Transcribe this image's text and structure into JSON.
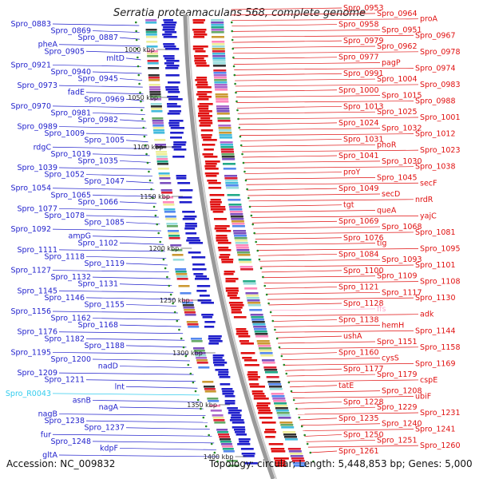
{
  "title": "Serratia proteamaculans 568, complete genome",
  "accession": "Accession: NC_009832",
  "topology": "Topology: circular; Length: 5,448,853 bp; Genes: 5,000",
  "colors": {
    "reverse": "#1f1fcc",
    "forward": "#e01010",
    "rna": "#33ccee",
    "trna": "#ffaacc",
    "backbone": "#999999",
    "dots": "#228822"
  },
  "scale_labels": [
    "1000 kbp",
    "1050 kbp",
    "1100 kbp",
    "1150 kbp",
    "1200 kbp",
    "1250 kbp",
    "1300 kbp",
    "1350 kbp",
    "1400 kbp"
  ],
  "left_labels": [
    "Spro_0883",
    "Spro_0869",
    "Spro_0887",
    "pheA",
    "Spro_0905",
    "mltD",
    "Spro_0921",
    "Spro_0940",
    "Spro_0945",
    "Spro_0973",
    "fadE",
    "Spro_0969",
    "Spro_0970",
    "Spro_0981",
    "Spro_0982",
    "Spro_0989",
    "Spro_1009",
    "Spro_1005",
    "rdgC",
    "Spro_1019",
    "Spro_1035",
    "Spro_1039",
    "Spro_1052",
    "Spro_1047",
    "Spro_1054",
    "Spro_1065",
    "Spro_1066",
    "Spro_1077",
    "Spro_1078",
    "Spro_1085",
    "Spro_1092",
    "ampG",
    "Spro_1102",
    "Spro_1111",
    "Spro_1118",
    "Spro_1119",
    "Spro_1127",
    "Spro_1132",
    "Spro_1131",
    "Spro_1145",
    "Spro_1146",
    "Spro_1155",
    "Spro_1156",
    "Spro_1162",
    "Spro_1168",
    "Spro_1176",
    "Spro_1182",
    "Spro_1188",
    "Spro_1195",
    "Spro_1200",
    "nadD",
    "Spro_1209",
    "Spro_1211",
    "lnt",
    "Spro_R0043",
    "asnB",
    "nagA",
    "nagB",
    "Spro_1238",
    "Spro_1237",
    "fur",
    "Spro_1248",
    "kdpF",
    "gltA"
  ],
  "right_labels": [
    "Spro_0953",
    "Spro_0964",
    "proA",
    "Spro_0958",
    "Spro_0951",
    "Spro_0967",
    "Spro_0979",
    "Spro_0962",
    "Spro_0978",
    "Spro_0977",
    "pagP",
    "Spro_0974",
    "Spro_0991",
    "Spro_1004",
    "Spro_0983",
    "Spro_1000",
    "Spro_1015",
    "Spro_0988",
    "Spro_1013",
    "Spro_1025",
    "Spro_1001",
    "Spro_1024",
    "Spro_1032",
    "Spro_1012",
    "Spro_1031",
    "phoR",
    "Spro_1023",
    "Spro_1041",
    "Spro_1030",
    "Spro_1038",
    "proY",
    "Spro_1045",
    "secF",
    "Spro_1049",
    "secD",
    "nrdR",
    "tgt",
    "queA",
    "yajC",
    "Spro_1069",
    "Spro_1068",
    "Spro_1081",
    "Spro_1076",
    "tig",
    "Spro_1095",
    "Spro_1084",
    "Spro_1093",
    "Spro_1101",
    "Spro_1100",
    "Spro_1109",
    "Spro_1108",
    "Spro_1121",
    "Spro_1117",
    "Spro_1130",
    "Spro_1128",
    "ffs",
    "adk",
    "Spro_1138",
    "hemH",
    "Spro_1144",
    "ushA",
    "Spro_1151",
    "Spro_1158",
    "Spro_1160",
    "cysS",
    "Spro_1169",
    "Spro_1177",
    "Spro_1179",
    "cspE",
    "tatE",
    "Spro_1208",
    "ubiF",
    "Spro_1228",
    "Spro_1229",
    "Spro_1231",
    "Spro_1235",
    "Spro_1240",
    "Spro_1241",
    "Spro_1250",
    "Spro_1251",
    "Spro_1260",
    "Spro_1261"
  ]
}
